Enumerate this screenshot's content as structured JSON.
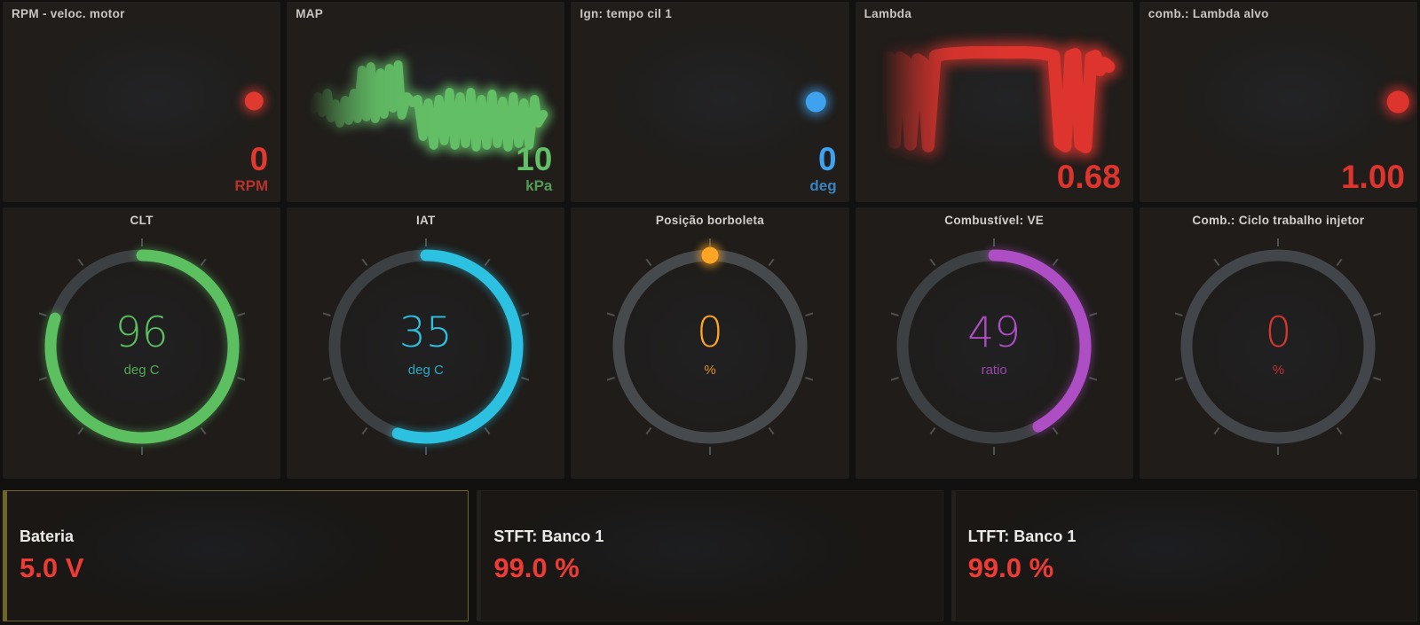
{
  "theme": {
    "background": "#131010",
    "panel_bg": "#201d1a",
    "title_color": "#c9c6c0",
    "gauge_track": "#3d4042",
    "gauge_track_light": "#474a4d",
    "tick_color": "#9aa0a5",
    "accent_red": "#e8322c"
  },
  "top_row": [
    {
      "title": "RPM - veloc. motor",
      "value": "0",
      "unit": "RPM",
      "color": "#e03a30",
      "spark": {
        "type": "line",
        "stroke_width": 10,
        "end_dot": true,
        "fade_in": true,
        "glow": 5,
        "points": [
          [
            26,
            111
          ],
          [
            284,
            111
          ]
        ]
      }
    },
    {
      "title": "MAP",
      "value": "10",
      "unit": "kPa",
      "color": "#63bf66",
      "spark": {
        "type": "line",
        "stroke_width": 10,
        "end_dot": false,
        "fade_in": true,
        "glow": 5,
        "points": [
          [
            25,
            112
          ],
          [
            30,
            120
          ],
          [
            35,
            106
          ],
          [
            40,
            124
          ],
          [
            46,
            102
          ],
          [
            50,
            130
          ],
          [
            55,
            114
          ],
          [
            60,
            136
          ],
          [
            66,
            110
          ],
          [
            70,
            133
          ],
          [
            76,
            102
          ],
          [
            80,
            131
          ],
          [
            85,
            76
          ],
          [
            90,
            129
          ],
          [
            95,
            72
          ],
          [
            100,
            131
          ],
          [
            106,
            79
          ],
          [
            110,
            126
          ],
          [
            116,
            74
          ],
          [
            120,
            119
          ],
          [
            126,
            70
          ],
          [
            130,
            127
          ],
          [
            136,
            106
          ],
          [
            142,
            113
          ],
          [
            148,
            109
          ],
          [
            154,
            151
          ],
          [
            160,
            113
          ],
          [
            166,
            161
          ],
          [
            172,
            109
          ],
          [
            178,
            156
          ],
          [
            184,
            101
          ],
          [
            190,
            161
          ],
          [
            196,
            106
          ],
          [
            202,
            159
          ],
          [
            208,
            101
          ],
          [
            214,
            163
          ],
          [
            220,
            109
          ],
          [
            226,
            161
          ],
          [
            232,
            103
          ],
          [
            238,
            159
          ],
          [
            244,
            111
          ],
          [
            250,
            163
          ],
          [
            256,
            106
          ],
          [
            262,
            159
          ],
          [
            268,
            113
          ],
          [
            274,
            161
          ],
          [
            280,
            109
          ],
          [
            284,
            136
          ],
          [
            290,
            126
          ]
        ]
      }
    },
    {
      "title": "Ign: tempo cil 1",
      "value": "0",
      "unit": "deg",
      "color": "#3fa2ee",
      "spark": {
        "type": "line",
        "stroke_width": 11,
        "end_dot": true,
        "fade_in": true,
        "glow": 5,
        "points": [
          [
            24,
            112
          ],
          [
            277,
            112
          ]
        ]
      }
    },
    {
      "title": "Lambda",
      "value": "0.68",
      "unit": "",
      "color": "#dd342e",
      "spark": {
        "type": "line",
        "stroke_width": 14,
        "end_dot": false,
        "fade_in": true,
        "glow": 6,
        "points": [
          [
            30,
            62
          ],
          [
            34,
            118
          ],
          [
            38,
            62
          ],
          [
            44,
            158
          ],
          [
            50,
            62
          ],
          [
            56,
            66
          ],
          [
            62,
            160
          ],
          [
            70,
            64
          ],
          [
            76,
            68
          ],
          [
            82,
            162
          ],
          [
            90,
            60
          ],
          [
            100,
            58
          ],
          [
            112,
            57
          ],
          [
            132,
            56
          ],
          [
            152,
            56
          ],
          [
            172,
            56
          ],
          [
            192,
            56
          ],
          [
            210,
            57
          ],
          [
            224,
            60
          ],
          [
            231,
            158
          ],
          [
            237,
            162
          ],
          [
            243,
            60
          ],
          [
            248,
            58
          ],
          [
            254,
            160
          ],
          [
            260,
            163
          ],
          [
            266,
            62
          ],
          [
            271,
            60
          ],
          [
            276,
            76
          ],
          [
            281,
            68
          ],
          [
            286,
            72
          ]
        ]
      }
    },
    {
      "title": "comb.: Lambda alvo",
      "value": "1.00",
      "unit": "",
      "color": "#dd342e",
      "spark": {
        "type": "line",
        "stroke_width": 12,
        "end_dot": true,
        "fade_in": true,
        "glow": 5,
        "points": [
          [
            32,
            112
          ],
          [
            292,
            112
          ]
        ]
      }
    }
  ],
  "gauges": [
    {
      "title": "CLT",
      "value": "96",
      "unit": "deg C",
      "color": "#5cbf60",
      "sweep_deg": 288,
      "dot_only": false,
      "track": "#3d4042"
    },
    {
      "title": "IAT",
      "value": "35",
      "unit": "deg C",
      "color": "#2cc1e0",
      "sweep_deg": 198,
      "dot_only": false,
      "track": "#3d4042"
    },
    {
      "title": "Posição borboleta",
      "value": "0",
      "unit": "%",
      "color": "#ffa524",
      "sweep_deg": 0,
      "dot_only": true,
      "track": "#474a4d"
    },
    {
      "title": "Combustível: VE",
      "value": "49",
      "unit": "ratio",
      "color": "#ae4ec4",
      "sweep_deg": 151,
      "dot_only": false,
      "track": "#3d4042"
    },
    {
      "title": "Comb.: Ciclo trabalho injetor",
      "value": "0",
      "unit": "%",
      "color": "#d8362f",
      "sweep_deg": 0,
      "dot_only": false,
      "track": "#42464a"
    }
  ],
  "bottom_row": [
    {
      "title": "Bateria",
      "value": "5.0 V",
      "accent": "#ef3b35",
      "frame": "#6f6527"
    },
    {
      "title": "STFT: Banco 1",
      "value": "99.0 %",
      "accent": "#ef3b35",
      "frame": "rgba(130,125,110,0.10)"
    },
    {
      "title": "LTFT: Banco 1",
      "value": "99.0 %",
      "accent": "#ef3b35",
      "frame": "rgba(130,125,110,0.10)"
    }
  ]
}
